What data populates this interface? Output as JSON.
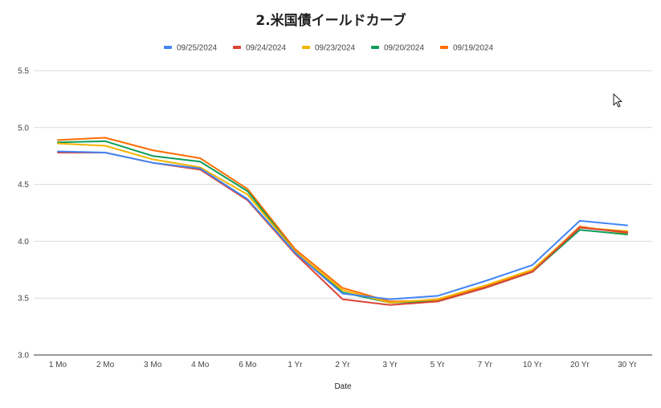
{
  "chart_data": {
    "type": "line",
    "title": "2.米国債イールドカーブ",
    "xlabel": "Date",
    "ylabel": "",
    "ylim": [
      3.0,
      5.5
    ],
    "yticks": [
      "3.0",
      "3.5",
      "4.0",
      "4.5",
      "5.0",
      "5.5"
    ],
    "grid": true,
    "legend_position": "top",
    "categories": [
      "1 Mo",
      "2 Mo",
      "3 Mo",
      "4 Mo",
      "6 Mo",
      "1 Yr",
      "2 Yr",
      "3 Yr",
      "5 Yr",
      "7 Yr",
      "10 Yr",
      "20 Yr",
      "30 Yr"
    ],
    "series": [
      {
        "name": "09/25/2024",
        "color": "#4285f4",
        "values": [
          4.79,
          4.78,
          4.69,
          4.64,
          4.37,
          3.9,
          3.54,
          3.49,
          3.52,
          3.65,
          3.79,
          4.18,
          4.14
        ]
      },
      {
        "name": "09/24/2024",
        "color": "#db4437",
        "values": [
          4.78,
          4.78,
          4.69,
          4.63,
          4.36,
          3.89,
          3.49,
          3.44,
          3.47,
          3.59,
          3.73,
          4.12,
          4.08
        ]
      },
      {
        "name": "09/23/2024",
        "color": "#f4b400",
        "values": [
          4.86,
          4.84,
          4.72,
          4.65,
          4.41,
          3.91,
          3.57,
          3.46,
          3.49,
          3.61,
          3.75,
          4.12,
          4.09
        ]
      },
      {
        "name": "09/20/2024",
        "color": "#0f9d58",
        "values": [
          4.87,
          4.88,
          4.75,
          4.7,
          4.44,
          3.91,
          3.55,
          3.46,
          3.47,
          3.59,
          3.73,
          4.1,
          4.06
        ]
      },
      {
        "name": "09/19/2024",
        "color": "#ff6d01",
        "values": [
          4.89,
          4.91,
          4.8,
          4.73,
          4.46,
          3.93,
          3.59,
          3.47,
          3.48,
          3.6,
          3.74,
          4.13,
          4.07
        ]
      }
    ]
  },
  "icons": {
    "cursor": "mouse-pointer-icon"
  }
}
